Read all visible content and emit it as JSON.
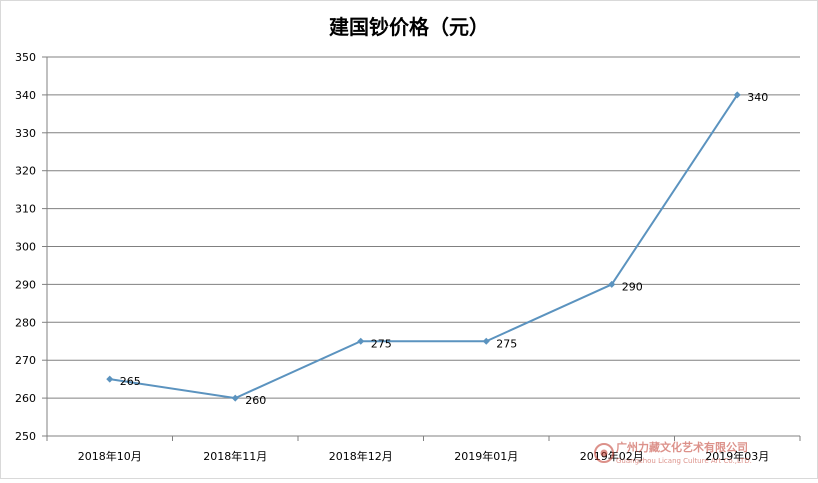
{
  "chart_data": {
    "type": "line",
    "title": "建国钞价格（元）",
    "categories": [
      "2018年10月",
      "2018年11月",
      "2018年12月",
      "2019年01月",
      "2019年02月",
      "2019年03月"
    ],
    "series": [
      {
        "values": [
          265,
          260,
          275,
          275,
          290,
          340
        ]
      }
    ],
    "data_labels": [
      "265",
      "260",
      "275",
      "275",
      "290",
      "340"
    ],
    "ylim": [
      250,
      350
    ],
    "y_ticks": [
      250,
      260,
      270,
      280,
      290,
      300,
      310,
      320,
      330,
      340,
      350
    ],
    "grid": true,
    "legend": "none",
    "line_color": "#5b93bf",
    "grid_color": "#808080"
  },
  "watermark": {
    "text": "广州力藏文化艺术有限公司",
    "subtext": "Guangzhou Licang Culture Art Co.,LTD."
  }
}
